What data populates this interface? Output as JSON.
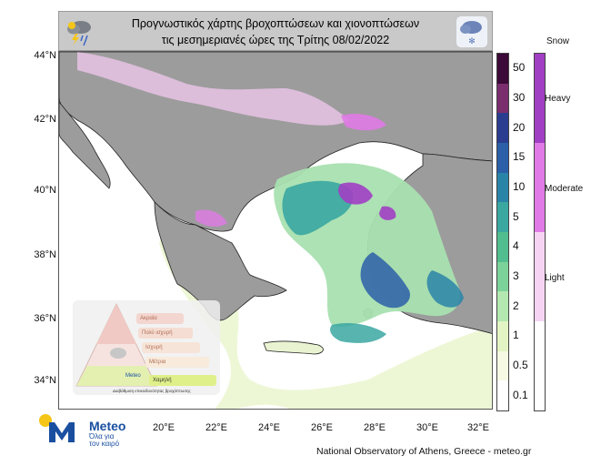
{
  "title": {
    "line1": "Προγνωστικός χάρτης βροχοπτώσεων και χιονοπτώσεων",
    "line2": "τις μεσημεριανές ώρες της Τρίτης 08/02/2022"
  },
  "header_icons": [
    "rain-cloud-lightning-icon",
    "snow-cloud-icon"
  ],
  "latitude_labels": [
    "44°N",
    "42°N",
    "40°N",
    "38°N",
    "36°N",
    "34°N"
  ],
  "longitude_labels": [
    "20°E",
    "22°E",
    "24°E",
    "26°E",
    "28°E",
    "30°E",
    "32°E"
  ],
  "rain_legend": {
    "labels": [
      "50",
      "30",
      "20",
      "15",
      "10",
      "5",
      "4",
      "3",
      "2",
      "1",
      "0.5",
      "0.1"
    ],
    "colors": [
      "#3b0a38",
      "#7a2e6e",
      "#2a3d8f",
      "#2b5fa8",
      "#2a84a8",
      "#3aa7a1",
      "#52bd8e",
      "#7cd39a",
      "#b3e8b0",
      "#e2f4c4",
      "#f6f9e3",
      "#ffffff"
    ]
  },
  "snow_legend": {
    "title": "Snow",
    "labels": [
      "Heavy",
      "Moderate",
      "Light"
    ],
    "colors": [
      "#a13fc4",
      "#e07ae6",
      "#f7d3f3",
      "#ffffff"
    ]
  },
  "inset": {
    "steps": [
      "Ακραία",
      "Πολύ ισχυρή",
      "Ισχυρή",
      "Μέτρια",
      "Χαμηλή"
    ],
    "step_numbers": [
      "5",
      "4",
      "3",
      "2",
      "1"
    ],
    "meteo_label": "Meteo",
    "caption": "Διαβάθμιση επικινδυνότητας βροχόπτωσης"
  },
  "logo": {
    "name": "Meteo",
    "tagline": "Όλα για τον καιρό"
  },
  "footer": "National Observatory of Athens, Greece - meteo.gr"
}
